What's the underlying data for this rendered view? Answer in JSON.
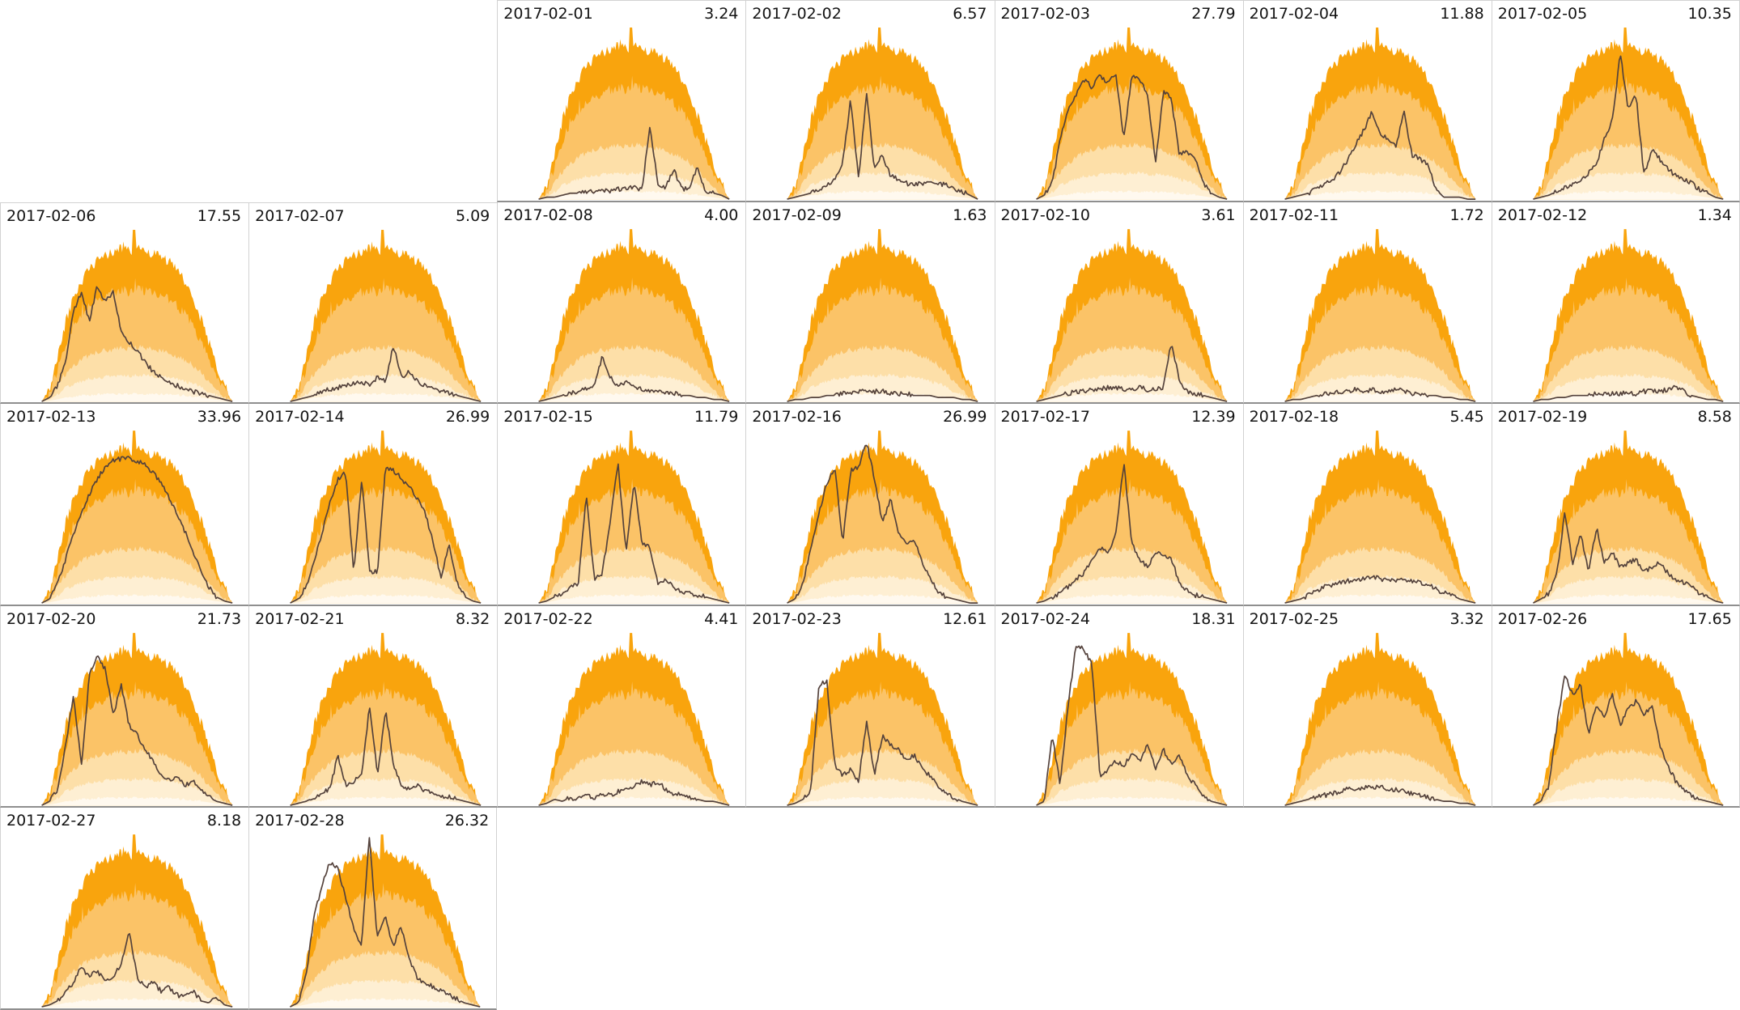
{
  "chart_data": {
    "type": "area",
    "title": "",
    "grid": {
      "columns": 7,
      "rows": 5,
      "first_day_column": 2
    },
    "colors": {
      "background": "#ffffff",
      "band_outer": "#f9a40d",
      "band_mid": "#fbc367",
      "band_inner": "#fddfa8",
      "band_core": "#feefd3",
      "band_base": "#fff9ef",
      "line": "#54423c",
      "cell_border": "#d2d2d2",
      "baseline": "#8f8f8f",
      "text": "#141414"
    },
    "envelope": {
      "x_start": 0.165,
      "x_end": 0.935,
      "outer_profile": [
        0.0,
        0.06,
        0.22,
        0.4,
        0.52,
        0.6,
        0.66,
        0.7,
        0.73,
        0.75,
        0.77,
        0.75,
        0.78,
        0.76,
        0.74,
        0.73,
        0.7,
        0.66,
        0.6,
        0.52,
        0.42,
        0.3,
        0.18,
        0.08,
        0.0
      ],
      "band_ratios": {
        "mid": 0.73,
        "inner": 0.35,
        "core": 0.17,
        "base": 0.05
      },
      "center_spike": {
        "x": 0.485,
        "height": 0.86
      }
    },
    "days": [
      {
        "date": "2017-02-01",
        "value": "3.24",
        "line_profile": [
          0,
          0.01,
          0.01,
          0.02,
          0.03,
          0.03,
          0.04,
          0.04,
          0.05,
          0.04,
          0.05,
          0.05,
          0.06,
          0.05,
          0.36,
          0.08,
          0.06,
          0.15,
          0.05,
          0.06,
          0.16,
          0.04,
          0.03,
          0.02,
          0
        ]
      },
      {
        "date": "2017-02-02",
        "value": "6.57",
        "line_profile": [
          0,
          0.01,
          0.02,
          0.03,
          0.05,
          0.07,
          0.1,
          0.18,
          0.5,
          0.1,
          0.53,
          0.15,
          0.22,
          0.12,
          0.1,
          0.08,
          0.07,
          0.08,
          0.09,
          0.08,
          0.07,
          0.05,
          0.04,
          0.02,
          0
        ]
      },
      {
        "date": "2017-02-03",
        "value": "27.79",
        "line_profile": [
          0,
          0.02,
          0.08,
          0.3,
          0.45,
          0.52,
          0.6,
          0.56,
          0.62,
          0.58,
          0.63,
          0.3,
          0.62,
          0.6,
          0.52,
          0.18,
          0.55,
          0.5,
          0.22,
          0.24,
          0.2,
          0.08,
          0.03,
          0.01,
          0
        ]
      },
      {
        "date": "2017-02-04",
        "value": "11.88",
        "line_profile": [
          0,
          0.01,
          0.02,
          0.03,
          0.05,
          0.07,
          0.1,
          0.14,
          0.2,
          0.28,
          0.35,
          0.44,
          0.33,
          0.3,
          0.26,
          0.44,
          0.22,
          0.2,
          0.18,
          0.05,
          0.01,
          0.01,
          0.01,
          0,
          0
        ]
      },
      {
        "date": "2017-02-05",
        "value": "10.35",
        "line_profile": [
          0,
          0.01,
          0.02,
          0.04,
          0.06,
          0.08,
          0.1,
          0.13,
          0.18,
          0.3,
          0.4,
          0.73,
          0.45,
          0.52,
          0.12,
          0.25,
          0.2,
          0.15,
          0.12,
          0.1,
          0.08,
          0.05,
          0.03,
          0.01,
          0
        ]
      },
      {
        "date": "2017-02-06",
        "value": "17.55",
        "line_profile": [
          0,
          0.02,
          0.08,
          0.2,
          0.45,
          0.55,
          0.4,
          0.58,
          0.5,
          0.55,
          0.35,
          0.3,
          0.25,
          0.2,
          0.15,
          0.12,
          0.1,
          0.08,
          0.06,
          0.05,
          0.04,
          0.03,
          0.02,
          0.01,
          0
        ]
      },
      {
        "date": "2017-02-07",
        "value": "5.09",
        "line_profile": [
          0,
          0.01,
          0.02,
          0.03,
          0.05,
          0.06,
          0.07,
          0.08,
          0.09,
          0.1,
          0.08,
          0.12,
          0.1,
          0.28,
          0.12,
          0.15,
          0.1,
          0.08,
          0.06,
          0.05,
          0.04,
          0.03,
          0.02,
          0.01,
          0
        ]
      },
      {
        "date": "2017-02-08",
        "value": "4.00",
        "line_profile": [
          0,
          0.01,
          0.02,
          0.03,
          0.04,
          0.05,
          0.06,
          0.08,
          0.22,
          0.12,
          0.08,
          0.1,
          0.07,
          0.06,
          0.05,
          0.05,
          0.04,
          0.04,
          0.03,
          0.03,
          0.02,
          0.02,
          0.01,
          0.01,
          0
        ]
      },
      {
        "date": "2017-02-09",
        "value": "1.63",
        "line_profile": [
          0,
          0.01,
          0.01,
          0.02,
          0.02,
          0.03,
          0.03,
          0.04,
          0.04,
          0.05,
          0.05,
          0.05,
          0.05,
          0.04,
          0.04,
          0.04,
          0.03,
          0.03,
          0.03,
          0.02,
          0.02,
          0.02,
          0.01,
          0.01,
          0
        ]
      },
      {
        "date": "2017-02-10",
        "value": "3.61",
        "line_profile": [
          0,
          0.01,
          0.02,
          0.03,
          0.04,
          0.05,
          0.05,
          0.06,
          0.06,
          0.07,
          0.07,
          0.06,
          0.06,
          0.07,
          0.06,
          0.06,
          0.07,
          0.3,
          0.1,
          0.05,
          0.04,
          0.03,
          0.02,
          0.01,
          0
        ]
      },
      {
        "date": "2017-02-11",
        "value": "1.72",
        "line_profile": [
          0,
          0.01,
          0.01,
          0.02,
          0.03,
          0.04,
          0.04,
          0.05,
          0.05,
          0.06,
          0.05,
          0.06,
          0.05,
          0.05,
          0.06,
          0.05,
          0.04,
          0.04,
          0.03,
          0.03,
          0.02,
          0.02,
          0.01,
          0.01,
          0
        ]
      },
      {
        "date": "2017-02-12",
        "value": "1.34",
        "line_profile": [
          0,
          0.01,
          0.01,
          0.02,
          0.02,
          0.03,
          0.03,
          0.03,
          0.04,
          0.04,
          0.04,
          0.04,
          0.04,
          0.04,
          0.05,
          0.05,
          0.05,
          0.06,
          0.08,
          0.05,
          0.03,
          0.02,
          0.01,
          0.01,
          0
        ]
      },
      {
        "date": "2017-02-13",
        "value": "33.96",
        "line_profile": [
          0,
          0.02,
          0.1,
          0.22,
          0.34,
          0.45,
          0.54,
          0.62,
          0.68,
          0.71,
          0.72,
          0.72,
          0.71,
          0.69,
          0.65,
          0.6,
          0.53,
          0.45,
          0.36,
          0.26,
          0.16,
          0.08,
          0.03,
          0.01,
          0
        ]
      },
      {
        "date": "2017-02-14",
        "value": "26.99",
        "line_profile": [
          0,
          0.02,
          0.08,
          0.2,
          0.35,
          0.5,
          0.62,
          0.65,
          0.15,
          0.62,
          0.15,
          0.16,
          0.68,
          0.66,
          0.62,
          0.58,
          0.52,
          0.45,
          0.3,
          0.12,
          0.3,
          0.1,
          0.03,
          0.01,
          0
        ]
      },
      {
        "date": "2017-02-15",
        "value": "11.79",
        "line_profile": [
          0,
          0.01,
          0.03,
          0.05,
          0.08,
          0.1,
          0.55,
          0.12,
          0.15,
          0.4,
          0.7,
          0.25,
          0.6,
          0.3,
          0.28,
          0.1,
          0.12,
          0.08,
          0.06,
          0.05,
          0.04,
          0.03,
          0.02,
          0.01,
          0
        ]
      },
      {
        "date": "2017-02-16",
        "value": "26.99",
        "line_profile": [
          0,
          0.02,
          0.1,
          0.28,
          0.45,
          0.6,
          0.68,
          0.3,
          0.66,
          0.68,
          0.8,
          0.62,
          0.4,
          0.52,
          0.35,
          0.3,
          0.32,
          0.2,
          0.12,
          0.06,
          0.03,
          0.02,
          0.01,
          0,
          0
        ]
      },
      {
        "date": "2017-02-17",
        "value": "12.39",
        "line_profile": [
          0,
          0.01,
          0.03,
          0.05,
          0.08,
          0.12,
          0.15,
          0.22,
          0.28,
          0.25,
          0.35,
          0.7,
          0.3,
          0.22,
          0.18,
          0.25,
          0.24,
          0.22,
          0.1,
          0.06,
          0.04,
          0.03,
          0.02,
          0.01,
          0
        ]
      },
      {
        "date": "2017-02-18",
        "value": "5.45",
        "line_profile": [
          0,
          0.01,
          0.02,
          0.04,
          0.06,
          0.08,
          0.09,
          0.1,
          0.11,
          0.12,
          0.12,
          0.13,
          0.12,
          0.12,
          0.11,
          0.12,
          0.11,
          0.1,
          0.09,
          0.07,
          0.05,
          0.04,
          0.02,
          0.01,
          0
        ]
      },
      {
        "date": "2017-02-19",
        "value": "8.58",
        "line_profile": [
          0,
          0.02,
          0.05,
          0.15,
          0.45,
          0.2,
          0.35,
          0.15,
          0.38,
          0.2,
          0.25,
          0.18,
          0.2,
          0.22,
          0.15,
          0.18,
          0.2,
          0.15,
          0.12,
          0.1,
          0.08,
          0.05,
          0.03,
          0.01,
          0
        ]
      },
      {
        "date": "2017-02-20",
        "value": "21.73",
        "line_profile": [
          0,
          0.02,
          0.08,
          0.3,
          0.55,
          0.2,
          0.65,
          0.74,
          0.68,
          0.45,
          0.6,
          0.4,
          0.35,
          0.28,
          0.22,
          0.15,
          0.12,
          0.14,
          0.1,
          0.12,
          0.08,
          0.04,
          0.02,
          0.01,
          0
        ]
      },
      {
        "date": "2017-02-21",
        "value": "8.32",
        "line_profile": [
          0,
          0.01,
          0.02,
          0.04,
          0.06,
          0.08,
          0.25,
          0.1,
          0.12,
          0.15,
          0.5,
          0.15,
          0.48,
          0.2,
          0.1,
          0.08,
          0.1,
          0.07,
          0.06,
          0.05,
          0.04,
          0.03,
          0.02,
          0.01,
          0
        ]
      },
      {
        "date": "2017-02-22",
        "value": "4.41",
        "line_profile": [
          0,
          0.01,
          0.03,
          0.02,
          0.04,
          0.03,
          0.05,
          0.04,
          0.06,
          0.05,
          0.07,
          0.08,
          0.1,
          0.12,
          0.1,
          0.12,
          0.08,
          0.06,
          0.05,
          0.04,
          0.03,
          0.02,
          0.02,
          0.01,
          0
        ]
      },
      {
        "date": "2017-02-23",
        "value": "12.61",
        "line_profile": [
          0,
          0.01,
          0.03,
          0.08,
          0.6,
          0.62,
          0.2,
          0.15,
          0.18,
          0.12,
          0.42,
          0.15,
          0.35,
          0.3,
          0.28,
          0.22,
          0.25,
          0.18,
          0.15,
          0.1,
          0.06,
          0.04,
          0.02,
          0.01,
          0
        ]
      },
      {
        "date": "2017-02-24",
        "value": "18.31",
        "line_profile": [
          0,
          0.02,
          0.35,
          0.1,
          0.5,
          0.8,
          0.78,
          0.7,
          0.15,
          0.18,
          0.22,
          0.2,
          0.25,
          0.22,
          0.3,
          0.18,
          0.28,
          0.2,
          0.25,
          0.15,
          0.1,
          0.05,
          0.02,
          0.01,
          0
        ]
      },
      {
        "date": "2017-02-25",
        "value": "3.32",
        "line_profile": [
          0,
          0.01,
          0.02,
          0.03,
          0.04,
          0.05,
          0.06,
          0.07,
          0.08,
          0.08,
          0.09,
          0.09,
          0.09,
          0.08,
          0.08,
          0.07,
          0.06,
          0.05,
          0.04,
          0.03,
          0.02,
          0.02,
          0.01,
          0.01,
          0
        ]
      },
      {
        "date": "2017-02-26",
        "value": "17.65",
        "line_profile": [
          0,
          0.02,
          0.1,
          0.4,
          0.65,
          0.55,
          0.6,
          0.35,
          0.5,
          0.45,
          0.55,
          0.4,
          0.48,
          0.52,
          0.45,
          0.5,
          0.3,
          0.2,
          0.12,
          0.08,
          0.05,
          0.03,
          0.02,
          0.01,
          0
        ]
      },
      {
        "date": "2017-02-27",
        "value": "8.18",
        "line_profile": [
          0,
          0.01,
          0.03,
          0.08,
          0.12,
          0.2,
          0.15,
          0.18,
          0.12,
          0.15,
          0.22,
          0.38,
          0.15,
          0.1,
          0.12,
          0.08,
          0.1,
          0.06,
          0.05,
          0.08,
          0.03,
          0.02,
          0.05,
          0.01,
          0
        ]
      },
      {
        "date": "2017-02-28",
        "value": "26.32",
        "line_profile": [
          0,
          0.02,
          0.15,
          0.45,
          0.6,
          0.72,
          0.7,
          0.55,
          0.4,
          0.3,
          0.86,
          0.35,
          0.45,
          0.3,
          0.4,
          0.25,
          0.15,
          0.12,
          0.1,
          0.08,
          0.06,
          0.04,
          0.02,
          0.01,
          0
        ]
      }
    ]
  }
}
